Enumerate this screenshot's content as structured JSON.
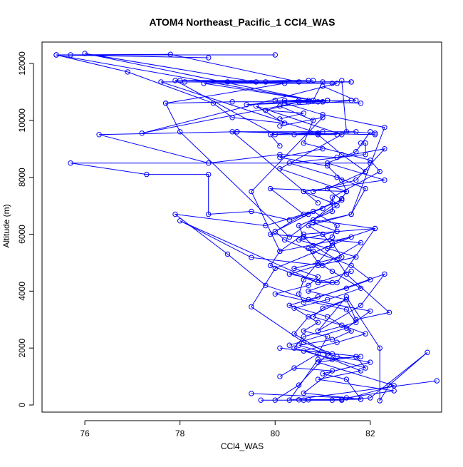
{
  "chart_data": {
    "type": "line",
    "title": "ATOM4 Northeast_Pacific_1 CCl4_WAS",
    "xlabel": "CCl4_WAS",
    "ylabel": "Altitude (m)",
    "xlim": [
      75.1,
      83.5
    ],
    "ylim": [
      -250,
      12750
    ],
    "xticks": [
      76,
      78,
      80,
      82
    ],
    "yticks": [
      0,
      2000,
      4000,
      6000,
      8000,
      10000,
      12000
    ],
    "xtick_labels": [
      "76",
      "78",
      "80",
      "82"
    ],
    "ytick_labels": [
      "0",
      "2000",
      "4000",
      "6000",
      "8000",
      "10000",
      "12000"
    ],
    "grid": false,
    "legend": "none",
    "series_color": "#0000ff",
    "series": [
      {
        "x": [
          80.6,
          81.2,
          82.0,
          83.2,
          82.4,
          82.2,
          82.2,
          81.5,
          80.9,
          81.8,
          82.3,
          80.6,
          80.5,
          80.6,
          81.2,
          81.0,
          80.7,
          81.6,
          81.9,
          81.3,
          80.3,
          81.9,
          81.9,
          81.8
        ],
        "y": [
          170,
          170,
          250,
          1850,
          700,
          150,
          2000,
          3800,
          2600,
          3500,
          4600,
          3600,
          3900,
          4400,
          5600,
          6000,
          6300,
          6700,
          7600,
          8000,
          8500,
          8800,
          9200,
          9200
        ]
      },
      {
        "x": [
          80.0,
          80.5,
          81.1,
          80.4,
          80.7,
          81.5,
          81.7,
          82.4,
          81.5,
          81.3,
          80.8,
          80.6,
          80.5,
          81.2,
          81.2,
          82.2,
          82.0,
          80.6,
          80.8,
          80.1,
          81.7,
          81.0
        ],
        "y": [
          170,
          700,
          1800,
          2500,
          3100,
          3700,
          3000,
          3250,
          4600,
          5100,
          5600,
          5900,
          6300,
          6800,
          7300,
          8200,
          8600,
          9200,
          10000,
          10500,
          10700,
          11200
        ]
      },
      {
        "x": [
          79.7,
          81.4,
          82.5,
          80.9,
          81.7,
          81.9,
          80.4,
          80.6,
          81.7,
          81.5,
          80.0,
          80.7,
          80.9,
          80.4,
          81.4,
          81.2,
          82.1,
          80.8,
          81.3,
          81.5,
          81.4,
          81.1,
          80.1,
          81.0
        ],
        "y": [
          170,
          170,
          680,
          1500,
          1700,
          1300,
          2000,
          2400,
          2900,
          3350,
          3900,
          4200,
          4500,
          4800,
          5200,
          5700,
          6200,
          6500,
          7000,
          7500,
          7900,
          8400,
          8700,
          9000
        ]
      },
      {
        "x": [
          80.5,
          81.4,
          81.8,
          80.6,
          81.2,
          80.4,
          80.1,
          80.9,
          81.1,
          80.6,
          80.9,
          80.4,
          81.1,
          81.8,
          81.2,
          80.9,
          80.7,
          81.2,
          81.3,
          80.8,
          81.4,
          81.1,
          81.9,
          81.4,
          80.9
        ],
        "y": [
          180,
          200,
          200,
          420,
          1200,
          1300,
          1000,
          1800,
          2400,
          2600,
          2900,
          3400,
          3700,
          4100,
          4700,
          5000,
          5500,
          5900,
          6300,
          6800,
          7200,
          7600,
          8200,
          8800,
          9500
        ]
      },
      {
        "x": [
          80.7,
          81.8,
          81.5,
          81.0,
          82.0,
          81.3,
          80.5,
          81.2,
          81.6,
          81.1,
          80.3,
          80.9,
          81.5,
          82.0,
          81.6,
          80.8,
          80.2,
          80.0,
          80.7,
          81.2,
          80.6,
          82.3,
          81.1,
          81.7,
          82.0
        ],
        "y": [
          180,
          200,
          900,
          1100,
          1500,
          1700,
          2100,
          2300,
          2600,
          3100,
          3500,
          3800,
          4100,
          4400,
          4900,
          5400,
          5800,
          6100,
          6700,
          7100,
          7500,
          7900,
          8500,
          8900,
          9600
        ]
      },
      {
        "x": [
          79.5,
          81.5,
          82.5,
          80.9,
          81.8,
          81.2,
          80.6,
          81.3,
          81.9,
          81.4,
          80.8,
          81.0,
          81.5,
          80.7,
          81.2,
          80.3,
          80.9,
          81.7,
          81.1,
          80.5,
          81.3,
          80.8,
          81.6,
          82.3,
          81.0,
          80.2
        ],
        "y": [
          400,
          250,
          500,
          900,
          1200,
          1600,
          1900,
          2200,
          2500,
          2800,
          3100,
          3400,
          3700,
          4000,
          4300,
          4600,
          4900,
          5200,
          5500,
          5800,
          6100,
          6400,
          6700,
          9750,
          10200,
          10600
        ]
      },
      {
        "x": [
          83.4,
          80.3,
          80.9,
          81.8,
          80.1,
          81.2,
          80.6,
          79.5,
          80.0,
          81.6,
          80.1,
          79.9,
          80.9,
          81.3,
          82.1,
          80.6,
          80.1,
          79.5,
          81.0,
          80.1
        ],
        "y": [
          850,
          170,
          1600,
          1700,
          2000,
          1800,
          2200,
          3450,
          4800,
          5900,
          5400,
          4900,
          4300,
          4300,
          6200,
          6000,
          5400,
          7500,
          10100,
          9800
        ]
      },
      {
        "x": [
          80.3,
          81.5,
          82.0,
          80.7,
          79.8,
          79.0,
          77.9,
          79.8,
          81.0,
          80.3,
          79.5,
          78.6,
          78.6,
          77.3,
          75.7,
          82.0
        ],
        "y": [
          2100,
          2700,
          3300,
          3700,
          4200,
          5300,
          6700,
          6300,
          6900,
          6500,
          6800,
          6700,
          8100,
          8100,
          8500,
          8500
        ]
      },
      {
        "x": [
          81.6,
          80.9,
          78.0,
          79.5,
          81.0,
          81.8,
          80.6,
          79.9,
          80.6,
          79.9,
          81.5,
          80.1,
          81.4,
          79.6,
          80.2,
          79.1,
          78.7,
          76.9,
          75.4,
          78.6,
          75.7,
          80.0
        ],
        "y": [
          4700,
          4300,
          6470,
          5180,
          4900,
          5700,
          5900,
          6000,
          6700,
          7600,
          7500,
          8300,
          9500,
          10500,
          9900,
          10100,
          10600,
          11700,
          12300,
          12200,
          12300,
          12300
        ]
      },
      {
        "x": [
          80.8,
          81.7,
          82.3,
          81.3,
          80.1,
          78.6,
          76.3,
          79.2,
          82.1,
          82.1,
          81.5,
          81.4
        ],
        "y": [
          7500,
          7900,
          9000,
          8700,
          8800,
          8500,
          9500,
          9600,
          9500,
          9550,
          9600,
          11400
        ]
      },
      {
        "x": [
          81.4,
          80.3,
          78.0,
          77.7,
          79.1,
          80.7,
          81.1,
          80.9,
          81.8
        ],
        "y": [
          7250,
          5900,
          9600,
          10600,
          10650,
          10650,
          10700,
          10650,
          10600
        ]
      },
      {
        "x": [
          80.9,
          79.1,
          81.7,
          80.9,
          80.4,
          80.9,
          77.6,
          81.6,
          78.1,
          81.3,
          77.2,
          80.7,
          79.4,
          81.0,
          78.5,
          81.2,
          80.2,
          77.7
        ],
        "y": [
          7100,
          9600,
          9600,
          9500,
          9500,
          9550,
          11350,
          11350,
          11350,
          11300,
          9550,
          10700,
          10550,
          10650,
          11300,
          11300,
          11300,
          10600
        ]
      },
      {
        "x": [
          79.2,
          81.3,
          80.0,
          77.9,
          80.7,
          80.8,
          79.6,
          76.0,
          80.8,
          75.4,
          77.8,
          80.5,
          79.8,
          78.0,
          79.0,
          81.6,
          81.0,
          80.8,
          80.5,
          81.6,
          80.0
        ],
        "y": [
          9600,
          9500,
          9500,
          11400,
          11400,
          11400,
          11350,
          12350,
          10700,
          12300,
          12320,
          11350,
          11350,
          11400,
          11350,
          11350,
          11350,
          10700,
          10700,
          10700,
          10700
        ]
      },
      {
        "x": [
          81.1,
          80.2,
          81.0,
          80.5,
          79.8,
          80.6,
          80.1
        ],
        "y": [
          10700,
          10700,
          10650,
          10650,
          10350,
          10250,
          10050
        ]
      },
      {
        "x": [
          81.0,
          79.9,
          80.1
        ],
        "y": [
          9600,
          9500,
          9100
        ]
      }
    ]
  }
}
